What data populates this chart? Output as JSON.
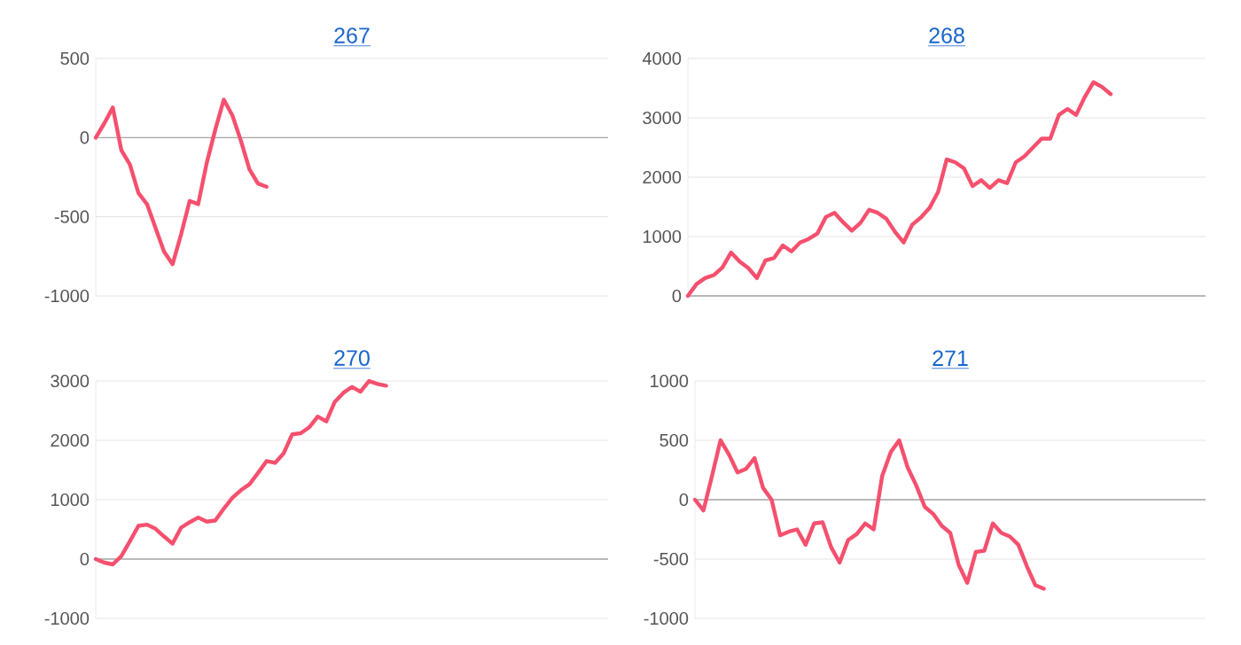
{
  "chart_data": [
    {
      "type": "line",
      "title": "267",
      "color": "#f5506e",
      "marker": "none",
      "grid": "y",
      "tick_labels": "y",
      "ylim": [
        -1000,
        500
      ],
      "yticks": [
        -1000,
        -500,
        0,
        500
      ],
      "categories": [
        null,
        null,
        null,
        null,
        null,
        null,
        null,
        null,
        null,
        null,
        null,
        null,
        null,
        null,
        null,
        null,
        null,
        null,
        null,
        null,
        null,
        null,
        null,
        null,
        null,
        null,
        null,
        null,
        null,
        null,
        null,
        null,
        null,
        null,
        null,
        null,
        null,
        null,
        null,
        null,
        null,
        null,
        null,
        null,
        null,
        null,
        null,
        null,
        null,
        null,
        null,
        null,
        null,
        null,
        null,
        null,
        null,
        null,
        null,
        null,
        null
      ],
      "values": [
        0,
        90,
        190,
        -80,
        -170,
        -350,
        -420,
        -570,
        -720,
        -800,
        -610,
        -400,
        -420,
        -160,
        50,
        240,
        140,
        -20,
        -200,
        -290,
        -310,
        null,
        null,
        null,
        null,
        null,
        null,
        null,
        null,
        null,
        null,
        null,
        null,
        null,
        null,
        null,
        null,
        null,
        null,
        null,
        null,
        null,
        null,
        null,
        null,
        null,
        null,
        null,
        null,
        null,
        null,
        null,
        null,
        null,
        null,
        null,
        null,
        null,
        null,
        null,
        null
      ]
    },
    {
      "type": "line",
      "title": "268",
      "color": "#f5506e",
      "marker": "none",
      "grid": "y",
      "tick_labels": "y",
      "ylim": [
        0,
        4000
      ],
      "yticks": [
        0,
        1000,
        2000,
        3000,
        4000
      ],
      "categories": [
        null,
        null,
        null,
        null,
        null,
        null,
        null,
        null,
        null,
        null,
        null,
        null,
        null,
        null,
        null,
        null,
        null,
        null,
        null,
        null,
        null,
        null,
        null,
        null,
        null,
        null,
        null,
        null,
        null,
        null,
        null,
        null,
        null,
        null,
        null,
        null,
        null,
        null,
        null,
        null,
        null,
        null,
        null,
        null,
        null,
        null,
        null,
        null,
        null,
        null,
        null,
        null,
        null,
        null,
        null,
        null,
        null,
        null,
        null,
        null,
        null
      ],
      "values": [
        0,
        200,
        300,
        350,
        480,
        730,
        580,
        470,
        300,
        600,
        640,
        850,
        750,
        900,
        960,
        1050,
        1330,
        1400,
        1240,
        1100,
        1230,
        1450,
        1400,
        1300,
        1080,
        900,
        1200,
        1320,
        1480,
        1750,
        2300,
        2250,
        2150,
        1850,
        1950,
        1820,
        1950,
        1900,
        2250,
        2350,
        2500,
        2650,
        2650,
        3050,
        3150,
        3050,
        3350,
        3600,
        3520,
        3400,
        null,
        null,
        null,
        null,
        null,
        null,
        null,
        null,
        null,
        null,
        null
      ]
    },
    {
      "type": "line",
      "title": "270",
      "color": "#f5506e",
      "marker": "none",
      "grid": "y",
      "tick_labels": "y",
      "ylim": [
        -1000,
        3000
      ],
      "yticks": [
        -1000,
        0,
        1000,
        2000,
        3000
      ],
      "categories": [
        null,
        null,
        null,
        null,
        null,
        null,
        null,
        null,
        null,
        null,
        null,
        null,
        null,
        null,
        null,
        null,
        null,
        null,
        null,
        null,
        null,
        null,
        null,
        null,
        null,
        null,
        null,
        null,
        null,
        null,
        null,
        null,
        null,
        null,
        null,
        null,
        null,
        null,
        null,
        null,
        null,
        null,
        null,
        null,
        null,
        null,
        null,
        null,
        null,
        null,
        null,
        null,
        null,
        null,
        null,
        null,
        null,
        null,
        null,
        null,
        null
      ],
      "values": [
        0,
        -60,
        -90,
        50,
        300,
        560,
        580,
        510,
        380,
        260,
        530,
        620,
        700,
        630,
        650,
        850,
        1030,
        1160,
        1260,
        1450,
        1650,
        1620,
        1780,
        2100,
        2120,
        2220,
        2400,
        2320,
        2650,
        2800,
        2900,
        2820,
        3000,
        2950,
        2920,
        null,
        null,
        null,
        null,
        null,
        null,
        null,
        null,
        null,
        null,
        null,
        null,
        null,
        null,
        null,
        null,
        null,
        null,
        null,
        null,
        null,
        null,
        null,
        null,
        null,
        null
      ]
    },
    {
      "type": "line",
      "title": "271",
      "color": "#f5506e",
      "marker": "none",
      "grid": "y",
      "tick_labels": "y",
      "ylim": [
        -1000,
        1000
      ],
      "yticks": [
        -1000,
        -500,
        0,
        500,
        1000
      ],
      "categories": [
        null,
        null,
        null,
        null,
        null,
        null,
        null,
        null,
        null,
        null,
        null,
        null,
        null,
        null,
        null,
        null,
        null,
        null,
        null,
        null,
        null,
        null,
        null,
        null,
        null,
        null,
        null,
        null,
        null,
        null,
        null,
        null,
        null,
        null,
        null,
        null,
        null,
        null,
        null,
        null,
        null,
        null,
        null,
        null,
        null,
        null,
        null,
        null,
        null,
        null,
        null,
        null,
        null,
        null,
        null,
        null,
        null,
        null,
        null,
        null,
        null
      ],
      "values": [
        0,
        -90,
        200,
        500,
        380,
        230,
        260,
        350,
        100,
        0,
        -300,
        -270,
        -250,
        -380,
        -200,
        -190,
        -400,
        -530,
        -340,
        -290,
        -200,
        -250,
        200,
        400,
        500,
        270,
        120,
        -60,
        -120,
        -220,
        -280,
        -550,
        -700,
        -440,
        -430,
        -200,
        -280,
        -310,
        -380,
        -560,
        -720,
        -750,
        null,
        null,
        null,
        null,
        null,
        null,
        null,
        null,
        null,
        null,
        null,
        null,
        null,
        null,
        null,
        null,
        null,
        null,
        null
      ]
    }
  ]
}
